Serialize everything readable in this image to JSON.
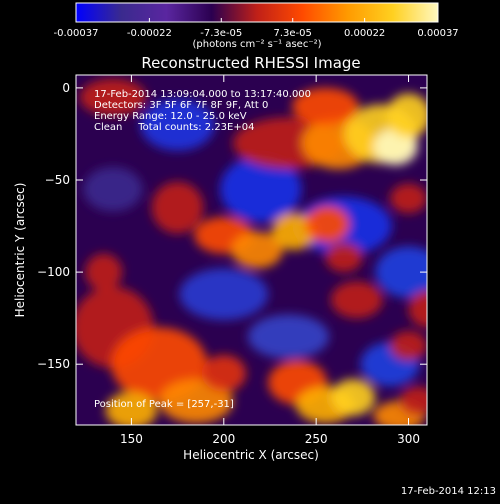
{
  "chart_data": {
    "type": "heatmap",
    "title": "Reconstructed RHESSI Image",
    "xlabel": "Heliocentric X (arcsec)",
    "ylabel": "Heliocentric Y (arcsec)",
    "xlim": [
      120,
      310
    ],
    "ylim": [
      -183,
      7
    ],
    "x_ticks": [
      150,
      200,
      250,
      300
    ],
    "y_ticks": [
      0,
      -50,
      -100,
      -150
    ],
    "grid": false,
    "colorbar": {
      "position": "top",
      "range": [
        -0.00037,
        0.00037
      ],
      "tick_values": [
        -0.00037,
        -0.00022,
        -7.3e-05,
        7.3e-05,
        0.00022,
        0.00037
      ],
      "tick_labels": [
        "-0.00037",
        "-0.00022",
        "-7.3e-05",
        "7.3e-05",
        "0.00022",
        "0.00037"
      ],
      "unit_label": "(photons cm⁻² s⁻¹ asec⁻²)",
      "colors": [
        "#0000ff",
        "#3a2a8e",
        "#5a26a0",
        "#2b0050",
        "#c02018",
        "#ff4a00",
        "#ff9a00",
        "#ffd020",
        "#fff8c0"
      ]
    },
    "annotations": [
      "17-Feb-2014 13:09:04.000 to 13:17:40.000",
      "Detectors: 3F 5F 6F 7F 8F 9F, Att 0",
      "Energy Range: 12.0 - 25.0 keV",
      "Clean     Total counts: 2.23E+04"
    ],
    "peak_label": "Position of Peak = [257,-31]",
    "peak": {
      "x": 257,
      "y": -31
    }
  },
  "footer": {
    "timestamp": "17-Feb-2014 12:13"
  }
}
